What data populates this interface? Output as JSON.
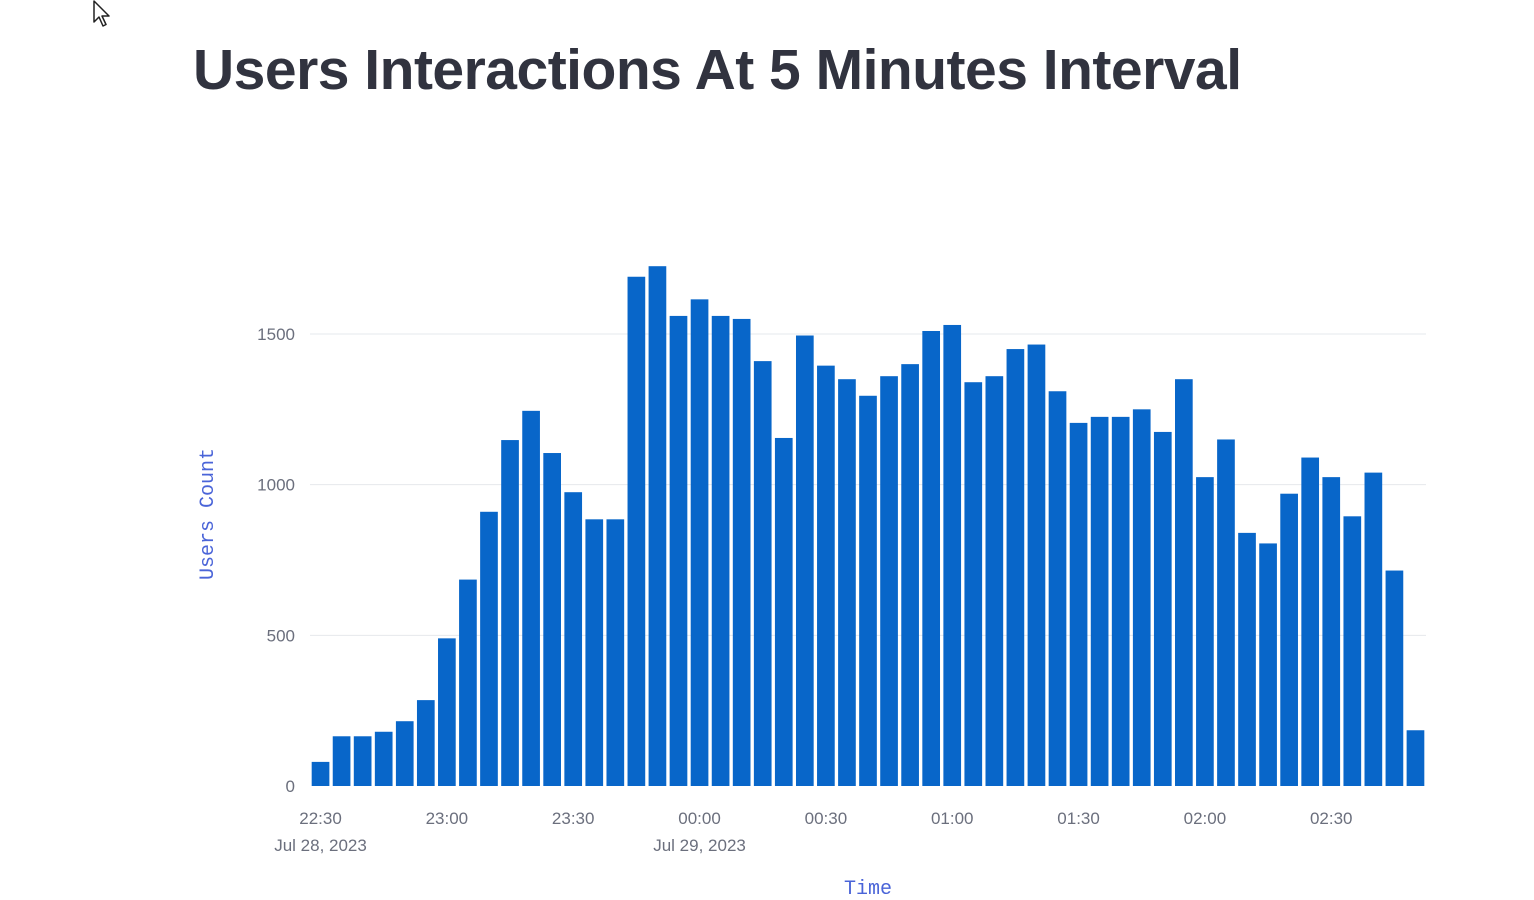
{
  "page": {
    "title": "Users Interactions At 5 Minutes Interval"
  },
  "colors": {
    "bar": "#0866c9",
    "grid": "#e6e8ec",
    "tick_text": "#6b6f7d",
    "axis_title": "#4a64d8",
    "title": "#31333f"
  },
  "chart_data": {
    "type": "bar",
    "title": "Users Interactions At 5 Minutes Interval",
    "xlabel": "Time",
    "ylabel": "Users Count",
    "ylim": [
      0,
      1750
    ],
    "grid": true,
    "bin_minutes": 5,
    "x_start": "22:30",
    "y_ticks": [
      0,
      500,
      1000,
      1500
    ],
    "y_tick_labels": [
      "0",
      "500",
      "1000",
      "1500"
    ],
    "x_ticks": [
      {
        "minute": 0,
        "label": "22:30",
        "sublabel": "Jul 28, 2023"
      },
      {
        "minute": 30,
        "label": "23:00",
        "sublabel": ""
      },
      {
        "minute": 60,
        "label": "23:30",
        "sublabel": ""
      },
      {
        "minute": 90,
        "label": "00:00",
        "sublabel": "Jul 29, 2023"
      },
      {
        "minute": 120,
        "label": "00:30",
        "sublabel": ""
      },
      {
        "minute": 150,
        "label": "01:00",
        "sublabel": ""
      },
      {
        "minute": 180,
        "label": "01:30",
        "sublabel": ""
      },
      {
        "minute": 210,
        "label": "02:00",
        "sublabel": ""
      },
      {
        "minute": 240,
        "label": "02:30",
        "sublabel": ""
      }
    ],
    "values": [
      80,
      165,
      165,
      180,
      215,
      285,
      490,
      685,
      910,
      1148,
      1245,
      1105,
      975,
      885,
      885,
      1690,
      1725,
      1560,
      1615,
      1560,
      1550,
      1410,
      1155,
      1495,
      1395,
      1350,
      1295,
      1360,
      1400,
      1510,
      1530,
      1340,
      1360,
      1450,
      1465,
      1310,
      1205,
      1225,
      1225,
      1250,
      1175,
      1350,
      1025,
      1150,
      840,
      805,
      970,
      1090,
      1025,
      895,
      1040,
      715,
      185
    ]
  }
}
